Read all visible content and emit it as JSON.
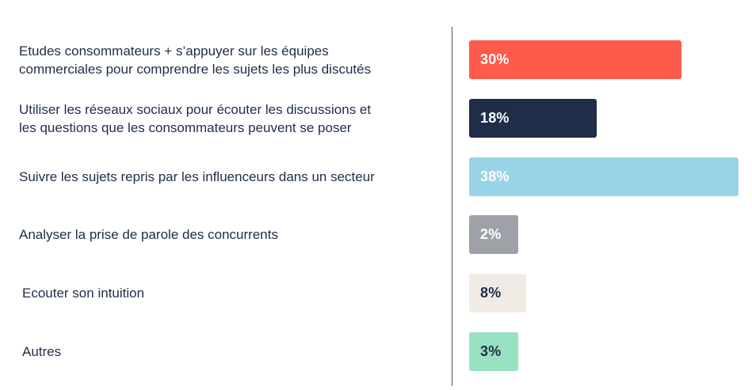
{
  "chart_data": {
    "type": "bar",
    "orientation": "horizontal",
    "title": "",
    "xlabel": "",
    "ylabel": "",
    "xlim": [
      0,
      38
    ],
    "grid": false,
    "categories": [
      "Etudes consommateurs + s’appuyer sur les équipes\ncommerciales pour comprendre les sujets les plus discutés",
      "Utiliser les réseaux sociaux pour écouter les discussions et\nles questions que les consommateurs peuvent se poser",
      "Suivre les sujets repris par les influenceurs dans un secteur",
      "Analyser la prise de parole des concurrents",
      "Ecouter son intuition",
      "Autres"
    ],
    "values": [
      30,
      18,
      38,
      2,
      8,
      3
    ],
    "value_labels": [
      "30%",
      "18%",
      "38%",
      "2%",
      "8%",
      "3%"
    ],
    "colors": [
      "#ff5a4b",
      "#1f2d48",
      "#99d3e8",
      "#9ea1a8",
      "#f0ebe5",
      "#97e1c0"
    ],
    "label_colors": [
      "#ffffff",
      "#ffffff",
      "#ffffff",
      "#ffffff",
      "#1f2d48",
      "#1f2d48"
    ]
  }
}
